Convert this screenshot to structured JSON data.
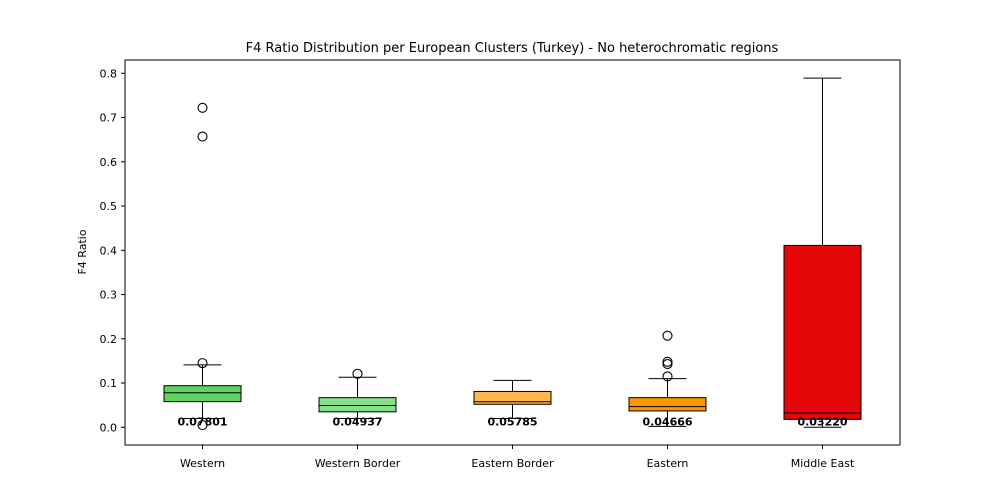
{
  "chart_data": {
    "type": "box",
    "title": "F4 Ratio Distribution per European Clusters (Turkey) - No heterochromatic regions",
    "xlabel": "",
    "ylabel": "F4 Ratio",
    "ylim": [
      -0.04,
      0.83
    ],
    "yticks": [
      "0.0",
      "0.1",
      "0.2",
      "0.3",
      "0.4",
      "0.5",
      "0.6",
      "0.7",
      "0.8"
    ],
    "ytick_values": [
      0,
      0.1,
      0.2,
      0.3,
      0.4,
      0.5,
      0.6,
      0.7,
      0.8
    ],
    "grid": false,
    "categories": [
      "Western",
      "Western Border",
      "Eastern Border",
      "Eastern",
      "Middle East"
    ],
    "boxes": [
      {
        "category": "Western",
        "color": "#5fd35f",
        "whisker_low": 0.02,
        "q1": 0.058,
        "median": 0.07801,
        "q3": 0.094,
        "whisker_high": 0.141,
        "outliers": [
          0.722,
          0.657,
          0.145,
          0.005
        ],
        "median_label": "0.07801"
      },
      {
        "category": "Western Border",
        "color": "#88e088",
        "whisker_low": 0.02,
        "q1": 0.035,
        "median": 0.04937,
        "q3": 0.067,
        "whisker_high": 0.113,
        "outliers": [
          0.121
        ],
        "median_label": "0.04937"
      },
      {
        "category": "Eastern Border",
        "color": "#ffb74d",
        "whisker_low": 0.02,
        "q1": 0.052,
        "median": 0.05785,
        "q3": 0.081,
        "whisker_high": 0.106,
        "outliers": [],
        "median_label": "0.05785"
      },
      {
        "category": "Eastern",
        "color": "#ff9800",
        "whisker_low": 0.002,
        "q1": 0.037,
        "median": 0.04666,
        "q3": 0.067,
        "whisker_high": 0.11,
        "outliers": [
          0.207,
          0.148,
          0.143,
          0.115
        ],
        "median_label": "0.04666"
      },
      {
        "category": "Middle East",
        "color": "#e60808",
        "whisker_low": 0.0,
        "q1": 0.018,
        "median": 0.0322,
        "q3": 0.411,
        "whisker_high": 0.789,
        "outliers": [],
        "median_label": "0.03220"
      }
    ]
  }
}
